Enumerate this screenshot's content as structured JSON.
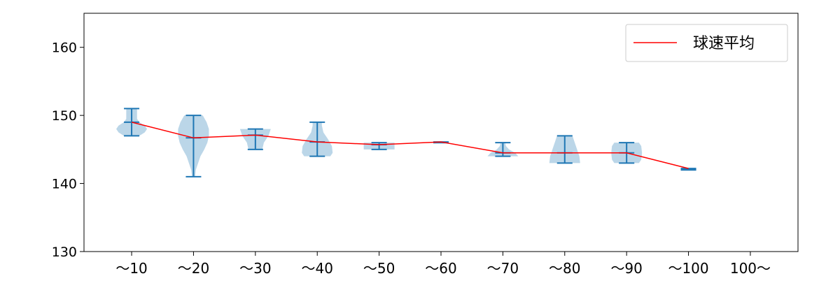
{
  "chart_data": {
    "type": "violin+line",
    "categories": [
      "~10",
      "~20",
      "~30",
      "~40",
      "~50",
      "~60",
      "~70",
      "~80",
      "~90",
      "~100",
      "100~"
    ],
    "tick_labels": [
      "〜10",
      "〜20",
      "〜30",
      "〜40",
      "〜50",
      "〜60",
      "〜70",
      "〜80",
      "〜90",
      "〜100",
      "100〜"
    ],
    "ylim": [
      130,
      165
    ],
    "yticks": [
      130,
      140,
      150,
      160
    ],
    "grid": false,
    "legend": {
      "position": "top-right",
      "entries": [
        {
          "label": "球速平均",
          "color": "#ff0000"
        }
      ]
    },
    "line_series": {
      "name": "球速平均",
      "color": "#ff0000",
      "values": [
        149.0,
        146.7,
        147.1,
        146.1,
        145.7,
        146.1,
        144.5,
        144.5,
        144.5,
        142.2,
        null
      ]
    },
    "violins": [
      {
        "min": 147,
        "max": 151,
        "mean": 149.0,
        "profile": [
          [
            147,
            0.5
          ],
          [
            147.5,
            0.85
          ],
          [
            148,
            1.0
          ],
          [
            148.5,
            0.85
          ],
          [
            149,
            0.5
          ],
          [
            149.5,
            0.35
          ],
          [
            150.5,
            0.35
          ],
          [
            151,
            0.35
          ]
        ]
      },
      {
        "min": 141,
        "max": 150,
        "mean": 146.7,
        "profile": [
          [
            141,
            0.1
          ],
          [
            142,
            0.15
          ],
          [
            143,
            0.3
          ],
          [
            144,
            0.45
          ],
          [
            145,
            0.7
          ],
          [
            146,
            0.9
          ],
          [
            147,
            1.0
          ],
          [
            148,
            1.0
          ],
          [
            149,
            0.85
          ],
          [
            150,
            0.6
          ]
        ]
      },
      {
        "min": 145,
        "max": 148,
        "mean": 147.1,
        "profile": [
          [
            145,
            0.45
          ],
          [
            146,
            0.55
          ],
          [
            147,
            0.85
          ],
          [
            148,
            1.0
          ]
        ]
      },
      {
        "min": 144,
        "max": 149,
        "mean": 146.1,
        "profile": [
          [
            144,
            0.85
          ],
          [
            144.5,
            1.0
          ],
          [
            145.5,
            0.95
          ],
          [
            146.5,
            0.7
          ],
          [
            147.5,
            0.4
          ],
          [
            148.5,
            0.3
          ],
          [
            149,
            0.3
          ]
        ]
      },
      {
        "min": 145,
        "max": 146,
        "mean": 145.7,
        "profile": [
          [
            145,
            1.0
          ],
          [
            146,
            1.0
          ]
        ]
      },
      {
        "min": 146,
        "max": 146,
        "mean": 146.1,
        "profile": []
      },
      {
        "min": 144,
        "max": 146,
        "mean": 144.5,
        "profile": [
          [
            144,
            1.0
          ],
          [
            144.5,
            0.8
          ],
          [
            145,
            0.4
          ],
          [
            145.5,
            0.2
          ],
          [
            146,
            0.15
          ]
        ]
      },
      {
        "min": 143,
        "max": 147,
        "mean": 144.5,
        "profile": [
          [
            143,
            1.0
          ],
          [
            144,
            0.95
          ],
          [
            145,
            0.8
          ],
          [
            146,
            0.65
          ],
          [
            147,
            0.5
          ]
        ]
      },
      {
        "min": 143,
        "max": 146,
        "mean": 144.5,
        "profile": [
          [
            143,
            0.8
          ],
          [
            143.5,
            0.95
          ],
          [
            144.5,
            1.0
          ],
          [
            145.5,
            0.95
          ],
          [
            146,
            0.8
          ]
        ]
      },
      {
        "min": 142,
        "max": 142,
        "mean": 142.2,
        "profile": []
      },
      null
    ]
  }
}
